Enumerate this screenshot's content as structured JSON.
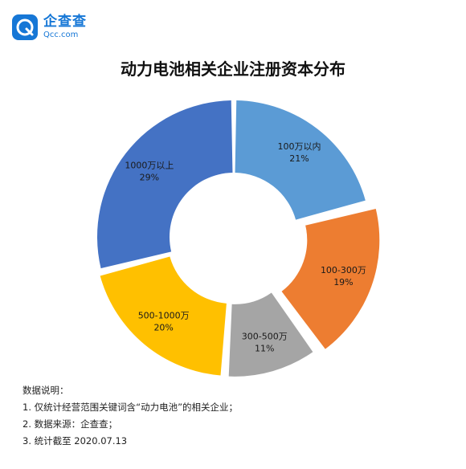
{
  "brand": {
    "name_cn": "企查查",
    "name_en": "Qcc.com"
  },
  "chart_data": {
    "type": "pie",
    "title": "动力电池相关企业注册资本分布",
    "slices": [
      {
        "label": "100万以内",
        "percent_label": "21%",
        "value": 21,
        "color": "#5b9bd5"
      },
      {
        "label": "100-300万",
        "percent_label": "19%",
        "value": 19,
        "color": "#ed7d31"
      },
      {
        "label": "300-500万",
        "percent_label": "11%",
        "value": 11,
        "color": "#a5a5a5"
      },
      {
        "label": "500-1000万",
        "percent_label": "20%",
        "value": 20,
        "color": "#ffc000"
      },
      {
        "label": "1000万以上",
        "percent_label": "29%",
        "value": 29,
        "color": "#4472c4"
      }
    ]
  },
  "notes": {
    "heading": "数据说明：",
    "items": [
      "1. 仅统计经营范围关键词含“动力电池”的相关企业；",
      "2. 数据来源：企查查；",
      "3. 统计截至 2020.07.13"
    ]
  }
}
